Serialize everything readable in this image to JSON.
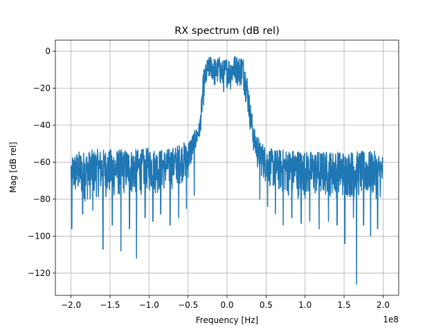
{
  "chart_data": {
    "type": "line",
    "title": "RX spectrum (dB rel)",
    "xlabel": "Frequency [Hz]",
    "ylabel": "Mag [dB rel]",
    "x_offset_label": "1e8",
    "x_scale": 100000000,
    "xlim": [
      -2.2,
      2.2
    ],
    "ylim": [
      -132,
      6
    ],
    "xticks": [
      -2.0,
      -1.5,
      -1.0,
      -0.5,
      0.0,
      0.5,
      1.0,
      1.5,
      2.0
    ],
    "xtick_labels": [
      "−2.0",
      "−1.5",
      "−1.0",
      "−0.5",
      "0.0",
      "0.5",
      "1.0",
      "1.5",
      "2.0"
    ],
    "yticks": [
      0,
      -20,
      -40,
      -60,
      -80,
      -100,
      -120
    ],
    "ytick_labels": [
      "0",
      "−20",
      "−40",
      "−60",
      "−80",
      "−100",
      "−120"
    ],
    "grid": true,
    "line_color": "#1f77b4",
    "series": [
      {
        "x": [
          -2.0,
          -1.9,
          -1.8,
          -1.7,
          -1.6,
          -1.5,
          -1.4,
          -1.3,
          -1.2,
          -1.1,
          -1.0,
          -0.9,
          -0.8,
          -0.7,
          -0.6,
          -0.5,
          -0.4,
          -0.35,
          -0.3,
          -0.25,
          -0.2,
          -0.15,
          -0.1,
          -0.05,
          0.0,
          0.05,
          0.1,
          0.15,
          0.2,
          0.25,
          0.3,
          0.35,
          0.4,
          0.5,
          0.6,
          0.7,
          0.8,
          0.9,
          1.0,
          1.1,
          1.2,
          1.3,
          1.4,
          1.5,
          1.6,
          1.7,
          1.8,
          1.9,
          2.0
        ],
        "values": [
          -65,
          -66,
          -67,
          -64,
          -63,
          -65,
          -64,
          -62,
          -63,
          -61,
          -60,
          -62,
          -61,
          -60,
          -58,
          -57,
          -50,
          -45,
          -20,
          -10,
          -8,
          -12,
          -9,
          -14,
          -10,
          -12,
          -9,
          -11,
          -10,
          -20,
          -35,
          -50,
          -56,
          -60,
          -62,
          -63,
          -63,
          -64,
          -64,
          -65,
          -65,
          -64,
          -65,
          -64,
          -66,
          -65,
          -64,
          -66,
          -65
        ],
        "noise_lower_envelope": [
          -80,
          -80,
          -82,
          -80,
          -79,
          -80,
          -80,
          -78,
          -79,
          -78,
          -77,
          -78,
          -76,
          -75,
          -72,
          -70,
          -55,
          -48,
          -30,
          -18,
          -16,
          -22,
          -18,
          -24,
          -20,
          -22,
          -18,
          -20,
          -20,
          -30,
          -45,
          -58,
          -66,
          -72,
          -76,
          -78,
          -79,
          -80,
          -80,
          -80,
          -80,
          -79,
          -80,
          -80,
          -80,
          -80,
          -80,
          -80,
          -80
        ],
        "noise_upper_envelope": [
          -56,
          -54,
          -54,
          -53,
          -53,
          -53,
          -53,
          -53,
          -53,
          -53,
          -52,
          -53,
          -53,
          -52,
          -50,
          -48,
          -42,
          -38,
          -10,
          -4,
          -2,
          -4,
          -3,
          -5,
          -3,
          -4,
          -2,
          -3,
          -2,
          -10,
          -28,
          -42,
          -46,
          -52,
          -53,
          -53,
          -53,
          -53,
          -54,
          -54,
          -54,
          -54,
          -54,
          -54,
          -54,
          -54,
          -54,
          -54,
          -56
        ],
        "deep_nulls": [
          {
            "x": -1.99,
            "y": -96
          },
          {
            "x": -1.85,
            "y": -88
          },
          {
            "x": -1.72,
            "y": -86
          },
          {
            "x": -1.59,
            "y": -107
          },
          {
            "x": -1.47,
            "y": -94
          },
          {
            "x": -1.36,
            "y": -108
          },
          {
            "x": -1.25,
            "y": -96
          },
          {
            "x": -1.16,
            "y": -112
          },
          {
            "x": -1.05,
            "y": -90
          },
          {
            "x": -0.95,
            "y": -92
          },
          {
            "x": -0.85,
            "y": -88
          },
          {
            "x": -0.73,
            "y": -94
          },
          {
            "x": -0.62,
            "y": -90
          },
          {
            "x": -0.52,
            "y": -85
          },
          {
            "x": -0.42,
            "y": -78
          },
          {
            "x": 0.42,
            "y": -80
          },
          {
            "x": 0.52,
            "y": -84
          },
          {
            "x": 0.62,
            "y": -88
          },
          {
            "x": 0.72,
            "y": -94
          },
          {
            "x": 0.83,
            "y": -90
          },
          {
            "x": 0.95,
            "y": -93
          },
          {
            "x": 1.06,
            "y": -92
          },
          {
            "x": 1.18,
            "y": -96
          },
          {
            "x": 1.3,
            "y": -92
          },
          {
            "x": 1.41,
            "y": -94
          },
          {
            "x": 1.51,
            "y": -104
          },
          {
            "x": 1.62,
            "y": -90
          },
          {
            "x": 1.66,
            "y": -126
          },
          {
            "x": 1.75,
            "y": -94
          },
          {
            "x": 1.84,
            "y": -100
          },
          {
            "x": 1.93,
            "y": -96
          }
        ]
      }
    ]
  }
}
